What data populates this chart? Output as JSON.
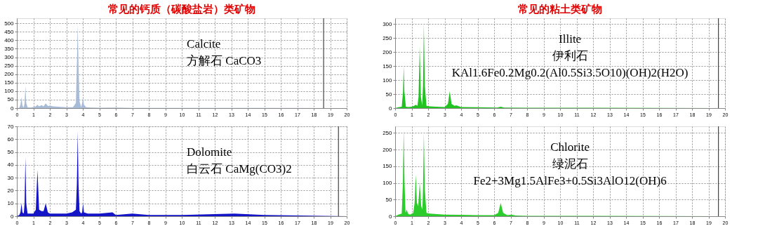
{
  "chart_data": [
    {
      "type": "area",
      "title": "常见的钙质（碳酸盐岩）类矿物",
      "annotations": [
        "Calcite",
        "方解石    CaCO3"
      ],
      "x": [
        0,
        0.15,
        0.22,
        0.28,
        0.34,
        0.42,
        0.47,
        0.52,
        0.57,
        0.65,
        0.8,
        1.0,
        1.15,
        1.25,
        1.35,
        1.5,
        1.62,
        1.75,
        1.88,
        2.0,
        2.2,
        2.5,
        3.0,
        3.4,
        3.58,
        3.64,
        3.69,
        3.74,
        3.8,
        3.9,
        3.96,
        4.01,
        4.07,
        4.2,
        4.5,
        5.0,
        6.0,
        6.5,
        7.0,
        10.0,
        15.0,
        20.0
      ],
      "series": [
        {
          "color": "#a8bcd8",
          "values": [
            0,
            2,
            20,
            65,
            15,
            3,
            30,
            130,
            30,
            5,
            3,
            6,
            10,
            20,
            10,
            18,
            10,
            28,
            12,
            15,
            10,
            8,
            5,
            5,
            30,
            250,
            495,
            250,
            40,
            5,
            30,
            60,
            20,
            5,
            3,
            2,
            3,
            2,
            1,
            1,
            1,
            0
          ]
        }
      ],
      "xlim": [
        0,
        20
      ],
      "xticks": [
        0,
        1,
        2,
        3,
        4,
        5,
        6,
        7,
        8,
        9,
        10,
        11,
        12,
        13,
        14,
        15,
        16,
        17,
        18,
        19,
        20
      ],
      "ylim": [
        0,
        530
      ],
      "yticks": [
        0,
        50,
        100,
        150,
        200,
        250,
        300,
        350,
        400,
        450,
        500
      ],
      "grid": true,
      "ref_lines": [
        {
          "axis": "x",
          "value": 18.6,
          "color": "#444444"
        }
      ]
    },
    {
      "type": "area",
      "title": "常见的粘土类矿物",
      "annotations": [
        "Illite",
        "伊利石",
        "KAl1.6Fe0.2Mg0.2(Al0.5Si3.5O10)(OH)2(H2O)"
      ],
      "x": [
        0,
        0.2,
        0.4,
        0.48,
        0.52,
        0.56,
        0.65,
        0.8,
        1.0,
        1.15,
        1.25,
        1.35,
        1.42,
        1.49,
        1.56,
        1.64,
        1.69,
        1.74,
        1.8,
        1.9,
        2.1,
        2.5,
        3.0,
        3.2,
        3.31,
        3.42,
        3.6,
        3.7,
        4.0,
        5.0,
        6.2,
        6.4,
        6.6,
        8.0,
        12.0,
        20.0
      ],
      "series": [
        {
          "color": "#22c222",
          "values": [
            0,
            3,
            5,
            60,
            150,
            60,
            5,
            4,
            5,
            8,
            12,
            8,
            40,
            220,
            40,
            10,
            80,
            300,
            80,
            8,
            6,
            5,
            4,
            15,
            60,
            15,
            8,
            10,
            4,
            3,
            2,
            5,
            2,
            1,
            1,
            0
          ]
        }
      ],
      "xlim": [
        0,
        20
      ],
      "xticks": [
        0,
        1,
        2,
        3,
        4,
        5,
        6,
        7,
        8,
        9,
        10,
        11,
        12,
        13,
        14,
        15,
        16,
        17,
        18,
        19,
        20
      ],
      "ylim": [
        0,
        320
      ],
      "yticks": [
        0,
        50,
        100,
        150,
        200,
        250,
        300
      ],
      "grid": true,
      "ref_lines": [
        {
          "axis": "x",
          "value": 19.6,
          "color": "#444444"
        }
      ]
    },
    {
      "type": "area",
      "annotations": [
        "Dolomite",
        "白云石    CaMg(CO3)2"
      ],
      "x": [
        0,
        0.15,
        0.22,
        0.28,
        0.34,
        0.42,
        0.47,
        0.52,
        0.57,
        0.65,
        0.8,
        1.0,
        1.15,
        1.25,
        1.35,
        1.5,
        1.62,
        1.75,
        1.88,
        2.0,
        2.5,
        3.0,
        3.35,
        3.58,
        3.64,
        3.69,
        3.74,
        3.8,
        3.9,
        3.96,
        4.01,
        4.07,
        4.3,
        5.0,
        5.8,
        6.0,
        7.0,
        8.0,
        10.0,
        13.2,
        15.0,
        20.0
      ],
      "series": [
        {
          "color": "#1515c8",
          "values": [
            0,
            1,
            3,
            10,
            3,
            2,
            10,
            46,
            10,
            2,
            2,
            2,
            5,
            36,
            5,
            4,
            4,
            10,
            3,
            2,
            2,
            2,
            3,
            5,
            25,
            66,
            25,
            4,
            2,
            3,
            10,
            3,
            2,
            2,
            3,
            1,
            2,
            1,
            1,
            2,
            1,
            0
          ]
        }
      ],
      "xlim": [
        0,
        20
      ],
      "xticks": [
        0,
        1,
        2,
        3,
        4,
        5,
        6,
        7,
        8,
        9,
        10,
        11,
        12,
        13,
        14,
        15,
        16,
        17,
        18,
        19,
        20
      ],
      "ylim": [
        0,
        70
      ],
      "yticks": [
        0,
        10,
        20,
        30,
        40,
        50,
        60,
        70
      ],
      "grid": true,
      "ref_lines": [
        {
          "axis": "x",
          "value": 19.5,
          "color": "#444444"
        }
      ]
    },
    {
      "type": "area",
      "annotations": [
        "Chlorite",
        "绿泥石",
        "Fe2+3Mg1.5AlFe3+0.5Si3AlO12(OH)6"
      ],
      "x": [
        0,
        0.2,
        0.4,
        0.47,
        0.52,
        0.57,
        0.63,
        0.7,
        0.78,
        0.9,
        1.1,
        1.18,
        1.25,
        1.32,
        1.4,
        1.49,
        1.58,
        1.65,
        1.69,
        1.74,
        1.8,
        1.9,
        2.1,
        3.0,
        4.0,
        5.0,
        6.0,
        6.25,
        6.4,
        6.55,
        6.8,
        7.05,
        7.3,
        8.0,
        12.0,
        20.0
      ],
      "series": [
        {
          "color": "#2ccc2c",
          "values": [
            0,
            5,
            8,
            100,
            260,
            100,
            10,
            20,
            8,
            5,
            10,
            40,
            125,
            40,
            30,
            100,
            30,
            20,
            80,
            250,
            80,
            10,
            8,
            5,
            4,
            3,
            3,
            10,
            40,
            10,
            3,
            5,
            2,
            1,
            1,
            0
          ]
        }
      ],
      "xlim": [
        0,
        20
      ],
      "xticks": [
        0,
        1,
        2,
        3,
        4,
        5,
        6,
        7,
        8,
        9,
        10,
        11,
        12,
        13,
        14,
        15,
        16,
        17,
        18,
        19,
        20
      ],
      "ylim": [
        0,
        270
      ],
      "yticks": [
        0,
        50,
        100,
        150,
        200,
        250
      ],
      "grid": true,
      "ref_lines": [
        {
          "axis": "x",
          "value": 19.6,
          "color": "#444444"
        }
      ]
    }
  ]
}
